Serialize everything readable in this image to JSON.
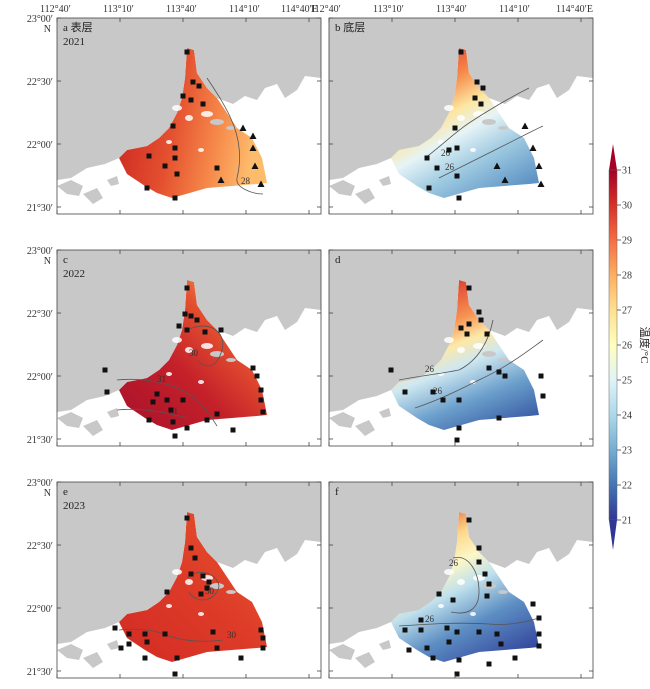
{
  "top_axis_labels": [
    "112°40′",
    "113°10′",
    "113°40′",
    "114°10′",
    "114°40′E"
  ],
  "left_axis_labels": [
    "23°00′",
    "22°30′",
    "22°00′",
    "21°30′"
  ],
  "north_label": "N",
  "panels": [
    {
      "id": "a",
      "title": "a 表层",
      "year": "2021",
      "contours": [
        "28"
      ]
    },
    {
      "id": "b",
      "title": "b 底层",
      "year": "",
      "contours": [
        "26",
        "26"
      ]
    },
    {
      "id": "c",
      "title": "c",
      "year": "2022",
      "contours": [
        "30",
        "31",
        "31"
      ]
    },
    {
      "id": "d",
      "title": "d",
      "year": "",
      "contours": [
        "26",
        "26"
      ]
    },
    {
      "id": "e",
      "title": "e",
      "year": "2023",
      "contours": [
        "30",
        "30"
      ]
    },
    {
      "id": "f",
      "title": "f",
      "year": "",
      "contours": [
        "26",
        "26"
      ]
    }
  ],
  "colorbar": {
    "label": "温度/°C",
    "ticks": [
      "31",
      "30",
      "29",
      "28",
      "27",
      "26",
      "25",
      "24",
      "23",
      "22",
      "21"
    ],
    "min": 21,
    "max": 31,
    "colors": [
      "#313695",
      "#4575b4",
      "#74add1",
      "#abd9e9",
      "#e0f3f8",
      "#ffffbf",
      "#fee090",
      "#fdae61",
      "#f46d43",
      "#d73027",
      "#a50026"
    ]
  },
  "colors": {
    "land": "#c8c8c8",
    "sea": "#ffffff",
    "contour": "#555555",
    "station": "#111111"
  }
}
